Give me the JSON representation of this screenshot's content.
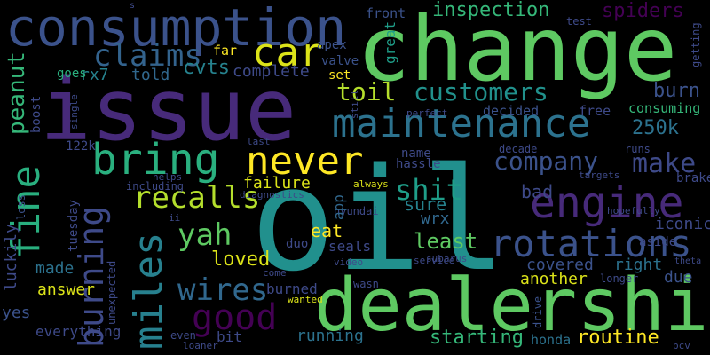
{
  "palette": {
    "background": "#000000",
    "dark_purple": "#440154",
    "purple": "#482677",
    "indigo": "#404688",
    "blue": "#33638d",
    "teal_blue": "#287d8e",
    "teal": "#1f968b",
    "green_teal": "#29af7f",
    "green": "#55c667",
    "light_green": "#95d840",
    "yellow": "#dce319"
  },
  "words": [
    {
      "text": "oil",
      "color": "#21908d"
    },
    {
      "text": "change",
      "color": "#5ec962"
    },
    {
      "text": "issue",
      "color": "#472a7a"
    },
    {
      "text": "dealership",
      "color": "#5ec962"
    },
    {
      "text": "consumption",
      "color": "#3b528b"
    },
    {
      "text": "maintenance",
      "color": "#2c728e"
    },
    {
      "text": "rotations",
      "color": "#3b528b"
    },
    {
      "text": "engine",
      "color": "#472a7a"
    },
    {
      "text": "bring",
      "color": "#2ab07f"
    },
    {
      "text": "never",
      "color": "#fde725"
    },
    {
      "text": "fine",
      "color": "#29af7f"
    },
    {
      "text": "burning",
      "color": "#3e4a89"
    },
    {
      "text": "miles",
      "color": "#27808e"
    },
    {
      "text": "good",
      "color": "#440154"
    },
    {
      "text": "car",
      "color": "#dce319"
    },
    {
      "text": "customers",
      "color": "#21918c"
    },
    {
      "text": "toil",
      "color": "#b4de2c"
    },
    {
      "text": "claims",
      "color": "#33638d"
    },
    {
      "text": "company",
      "color": "#3b528b"
    },
    {
      "text": "make",
      "color": "#3e4a89"
    },
    {
      "text": "shit",
      "color": "#1f9e89"
    },
    {
      "text": "recalls",
      "color": "#b4de2c"
    },
    {
      "text": "yah",
      "color": "#5ec962"
    },
    {
      "text": "wires",
      "color": "#31688e"
    },
    {
      "text": "loved",
      "color": "#dce319"
    },
    {
      "text": "peanut",
      "color": "#35b779"
    },
    {
      "text": "inspection",
      "color": "#35b779"
    },
    {
      "text": "spiders",
      "color": "#440154"
    },
    {
      "text": "cvts",
      "color": "#26828e"
    },
    {
      "text": "complete",
      "color": "#3e4a89"
    },
    {
      "text": "250k",
      "color": "#2c728e"
    },
    {
      "text": "burn",
      "color": "#3b528b"
    },
    {
      "text": "consuming",
      "color": "#35b779"
    },
    {
      "text": "free",
      "color": "#3e4a89"
    },
    {
      "text": "rx7",
      "color": "#26828e"
    },
    {
      "text": "told",
      "color": "#31688e"
    },
    {
      "text": "front",
      "color": "#3b528b"
    },
    {
      "text": "apex",
      "color": "#3b528b"
    },
    {
      "text": "valve",
      "color": "#3b528b"
    },
    {
      "text": "set",
      "color": "#fde725"
    },
    {
      "text": "far",
      "color": "#fde725"
    },
    {
      "text": "goes",
      "color": "#2ab07f"
    },
    {
      "text": "boost",
      "color": "#3e4a89"
    },
    {
      "text": "single",
      "color": "#3e4a89"
    },
    {
      "text": "still",
      "color": "#3e4a89"
    },
    {
      "text": "perfect",
      "color": "#3e4a89"
    },
    {
      "text": "decided",
      "color": "#3b528b"
    },
    {
      "text": "great",
      "color": "#1f9e89"
    },
    {
      "text": "test",
      "color": "#3e4a89"
    },
    {
      "text": "s",
      "color": "#3e4a89"
    },
    {
      "text": "getting",
      "color": "#3e4a89"
    },
    {
      "text": "runs",
      "color": "#3e4a89"
    },
    {
      "text": "decade",
      "color": "#3e4a89"
    },
    {
      "text": "hassle",
      "color": "#3e4a89"
    },
    {
      "text": "name",
      "color": "#3e4a89"
    },
    {
      "text": "last",
      "color": "#3e4a89"
    },
    {
      "text": "helps",
      "color": "#3e4a89"
    },
    {
      "text": "targets",
      "color": "#3e4a89"
    },
    {
      "text": "brakes",
      "color": "#3e4a89"
    },
    {
      "text": "failure",
      "color": "#dce319"
    },
    {
      "text": "always",
      "color": "#dce319"
    },
    {
      "text": "sure",
      "color": "#26828e"
    },
    {
      "text": "bad",
      "color": "#3e4a89"
    },
    {
      "text": "wrx",
      "color": "#31688e"
    },
    {
      "text": "app",
      "color": "#31688e"
    },
    {
      "text": "hyundai",
      "color": "#3e4a89"
    },
    {
      "text": "hopefully",
      "color": "#3e4a89"
    },
    {
      "text": "iconic",
      "color": "#3e4a89"
    },
    {
      "text": "aside",
      "color": "#3e4a89"
    },
    {
      "text": "least",
      "color": "#5ec962"
    },
    {
      "text": "eat",
      "color": "#fde725"
    },
    {
      "text": "subarus",
      "color": "#3e4a89"
    },
    {
      "text": "seals",
      "color": "#3e4a89"
    },
    {
      "text": "video",
      "color": "#3e4a89"
    },
    {
      "text": "duo",
      "color": "#3e4a89"
    },
    {
      "text": "service",
      "color": "#3e4a89"
    },
    {
      "text": "covered",
      "color": "#3b528b"
    },
    {
      "text": "right",
      "color": "#2c728e"
    },
    {
      "text": "due",
      "color": "#3b528b"
    },
    {
      "text": "theta",
      "color": "#3e4a89"
    },
    {
      "text": "longer",
      "color": "#3e4a89"
    },
    {
      "text": "another",
      "color": "#dce319"
    },
    {
      "text": "within",
      "color": "#3e4a89"
    },
    {
      "text": "wasn",
      "color": "#3e4a89"
    },
    {
      "text": "wanted",
      "color": "#dce319"
    },
    {
      "text": "burned",
      "color": "#3e4a89"
    },
    {
      "text": "come",
      "color": "#3e4a89"
    },
    {
      "text": "drive",
      "color": "#3b528b"
    },
    {
      "text": "honda",
      "color": "#2c728e"
    },
    {
      "text": "routine",
      "color": "#fde725"
    },
    {
      "text": "starting",
      "color": "#35b779"
    },
    {
      "text": "running",
      "color": "#2c728e"
    },
    {
      "text": "bit",
      "color": "#3e4a89"
    },
    {
      "text": "even",
      "color": "#3e4a89"
    },
    {
      "text": "loaner",
      "color": "#3e4a89"
    },
    {
      "text": "pcv",
      "color": "#3e4a89"
    },
    {
      "text": "122k",
      "color": "#3e4a89"
    },
    {
      "text": "including",
      "color": "#3e4a89"
    },
    {
      "text": "tuesday",
      "color": "#3e4a89"
    },
    {
      "text": "ii",
      "color": "#3e4a89"
    },
    {
      "text": "diagnostics",
      "color": "#3e4a89"
    },
    {
      "text": "luckily",
      "color": "#3e4a89"
    },
    {
      "text": "loss",
      "color": "#3b528b"
    },
    {
      "text": "made",
      "color": "#2c728e"
    },
    {
      "text": "answer",
      "color": "#dce319"
    },
    {
      "text": "yes",
      "color": "#3b528b"
    },
    {
      "text": "everything",
      "color": "#3e4a89"
    },
    {
      "text": "unexpected",
      "color": "#3e4a89"
    }
  ]
}
